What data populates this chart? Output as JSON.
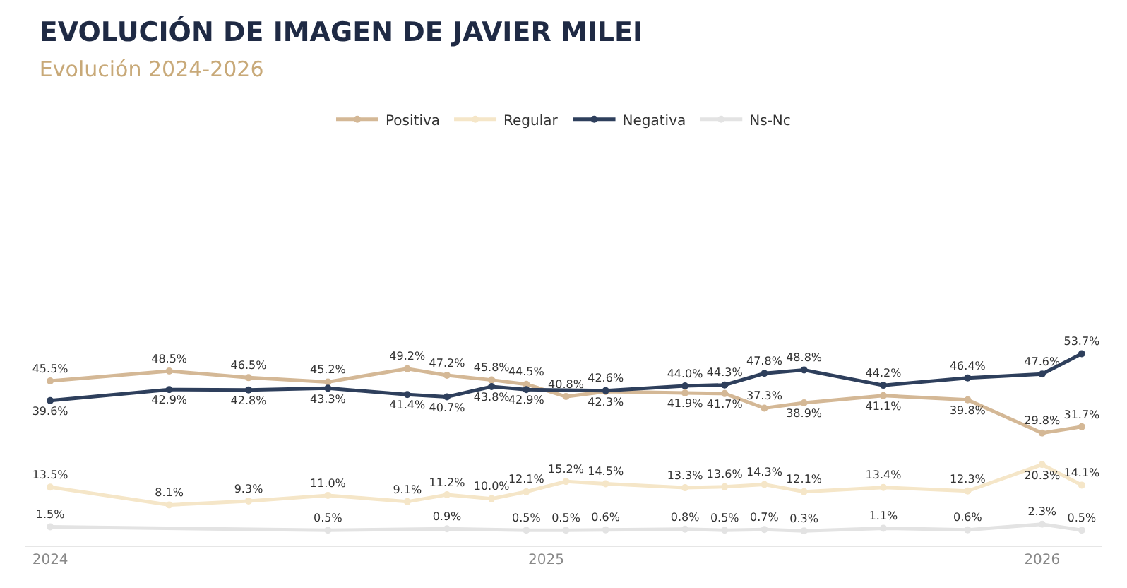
{
  "chart_data": {
    "type": "line",
    "title": "EVOLUCIÓN DE IMAGEN DE JAVIER MILEI",
    "subtitle": "Evolución 2024-2026",
    "xlim": [
      2023.95,
      2026.12
    ],
    "xticks": [
      2024,
      2025,
      2026
    ],
    "tick_labels": "x",
    "legend": "top",
    "marker": "circle",
    "line_style": "solid",
    "series": [
      {
        "name": "Positiva",
        "color": "#d4b896",
        "x": [
          2024.0,
          2024.24,
          2024.4,
          2024.56,
          2024.72,
          2024.8,
          2024.89,
          2024.96,
          2025.04,
          2025.12,
          2025.28,
          2025.36,
          2025.44,
          2025.52,
          2025.68,
          2025.85,
          2026.0,
          2026.08
        ],
        "values": [
          45.5,
          48.5,
          46.5,
          45.2,
          49.2,
          47.2,
          45.8,
          44.5,
          40.8,
          42.3,
          41.9,
          41.7,
          37.3,
          38.9,
          41.1,
          39.8,
          29.8,
          31.7
        ],
        "value_labels": [
          "45.5%",
          "48.5%",
          "46.5%",
          "45.2%",
          "49.2%",
          "47.2%",
          "45.8%",
          "44.5%",
          "40.8%",
          "42.3%",
          "41.9%",
          "41.7%",
          "37.3%",
          "38.9%",
          "41.1%",
          "39.8%",
          "29.8%",
          "31.7%"
        ]
      },
      {
        "name": "Regular",
        "color": "#f5e6c8",
        "x": [
          2024.0,
          2024.24,
          2024.4,
          2024.56,
          2024.72,
          2024.8,
          2024.89,
          2024.96,
          2025.04,
          2025.12,
          2025.28,
          2025.36,
          2025.44,
          2025.52,
          2025.68,
          2025.85,
          2026.0,
          2026.08
        ],
        "values": [
          13.5,
          8.1,
          9.3,
          11.0,
          9.1,
          11.2,
          10.0,
          12.1,
          15.2,
          14.5,
          13.3,
          13.6,
          14.3,
          12.1,
          13.4,
          12.3,
          20.3,
          14.1
        ],
        "value_labels": [
          "13.5%",
          "8.1%",
          "9.3%",
          "11.0%",
          "9.1%",
          "11.2%",
          "10.0%",
          "12.1%",
          "15.2%",
          "14.5%",
          "13.3%",
          "13.6%",
          "14.3%",
          "12.1%",
          "13.4%",
          "12.3%",
          "20.3%",
          "14.1%"
        ]
      },
      {
        "name": "Negativa",
        "color": "#2e3f5c",
        "x": [
          2024.0,
          2024.24,
          2024.4,
          2024.56,
          2024.72,
          2024.8,
          2024.89,
          2024.96,
          2025.12,
          2025.28,
          2025.36,
          2025.44,
          2025.52,
          2025.68,
          2025.85,
          2026.0,
          2026.08
        ],
        "values": [
          39.6,
          42.9,
          42.8,
          43.3,
          41.4,
          40.7,
          43.8,
          42.9,
          42.6,
          44.0,
          44.3,
          47.8,
          48.8,
          44.2,
          46.4,
          47.6,
          53.7
        ],
        "value_labels": [
          "39.6%",
          "42.9%",
          "42.8%",
          "43.3%",
          "41.4%",
          "40.7%",
          "43.8%",
          "42.9%",
          "42.6%",
          "44.0%",
          "44.3%",
          "47.8%",
          "48.8%",
          "44.2%",
          "46.4%",
          "47.6%",
          "53.7%"
        ]
      },
      {
        "name": "Ns-Nc",
        "color": "#e3e3e3",
        "x": [
          2024.0,
          2024.56,
          2024.8,
          2024.96,
          2025.04,
          2025.12,
          2025.28,
          2025.36,
          2025.44,
          2025.52,
          2025.68,
          2025.85,
          2026.0,
          2026.08
        ],
        "values": [
          1.5,
          0.5,
          0.9,
          0.5,
          0.5,
          0.6,
          0.8,
          0.5,
          0.7,
          0.3,
          1.1,
          0.6,
          2.3,
          0.5
        ],
        "value_labels": [
          "1.5%",
          "0.5%",
          "0.9%",
          "0.5%",
          "0.5%",
          "0.6%",
          "0.8%",
          "0.5%",
          "0.7%",
          "0.3%",
          "1.1%",
          "0.6%",
          "2.3%",
          "0.5%"
        ]
      }
    ]
  }
}
